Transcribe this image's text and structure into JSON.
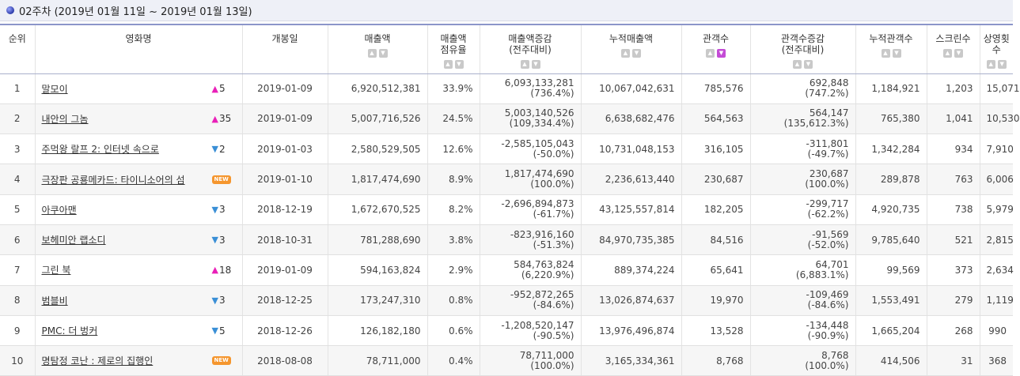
{
  "header": {
    "title": "02주차 (2019년 01월 11일 ~ 2019년 01월 13일)"
  },
  "columns": [
    {
      "label": "순위",
      "sortable": false,
      "active": false
    },
    {
      "label": "영화명",
      "sortable": false,
      "active": false
    },
    {
      "label": "개봉일",
      "sortable": false,
      "active": false
    },
    {
      "label": "매출액",
      "sortable": true,
      "active": false
    },
    {
      "label": "매출액\n점유율",
      "sortable": true,
      "active": false
    },
    {
      "label": "매출액증감\n(전주대비)",
      "sortable": true,
      "active": false
    },
    {
      "label": "누적매출액",
      "sortable": true,
      "active": false
    },
    {
      "label": "관객수",
      "sortable": true,
      "active": true
    },
    {
      "label": "관객수증감\n(전주대비)",
      "sortable": true,
      "active": false
    },
    {
      "label": "누적관객수",
      "sortable": true,
      "active": false
    },
    {
      "label": "스크린수",
      "sortable": true,
      "active": false
    },
    {
      "label": "상영횟수",
      "sortable": true,
      "active": false
    }
  ],
  "rows": [
    {
      "rank": "1",
      "title": "말모이",
      "change": {
        "dir": "up",
        "value": "5"
      },
      "release": "2019-01-09",
      "sales": "6,920,512,381",
      "share": "33.9%",
      "sales_delta": "6,093,133,281",
      "sales_delta_pct": "(736.4%)",
      "cum_sales": "10,067,042,631",
      "audience": "785,576",
      "aud_delta": "692,848",
      "aud_delta_pct": "(747.2%)",
      "cum_audience": "1,184,921",
      "screens": "1,203",
      "shows": "15,071"
    },
    {
      "rank": "2",
      "title": "내안의 그놈",
      "change": {
        "dir": "up",
        "value": "35"
      },
      "release": "2019-01-09",
      "sales": "5,007,716,526",
      "share": "24.5%",
      "sales_delta": "5,003,140,526",
      "sales_delta_pct": "(109,334.4%)",
      "cum_sales": "6,638,682,476",
      "audience": "564,563",
      "aud_delta": "564,147",
      "aud_delta_pct": "(135,612.3%)",
      "cum_audience": "765,380",
      "screens": "1,041",
      "shows": "10,530"
    },
    {
      "rank": "3",
      "title": "주먹왕 랄프 2: 인터넷 속으로",
      "change": {
        "dir": "down",
        "value": "2"
      },
      "release": "2019-01-03",
      "sales": "2,580,529,505",
      "share": "12.6%",
      "sales_delta": "-2,585,105,043",
      "sales_delta_pct": "(-50.0%)",
      "cum_sales": "10,731,048,153",
      "audience": "316,105",
      "aud_delta": "-311,801",
      "aud_delta_pct": "(-49.7%)",
      "cum_audience": "1,342,284",
      "screens": "934",
      "shows": "7,910"
    },
    {
      "rank": "4",
      "title": "극장판 공룡메카드: 타이니소어의 섬",
      "change": {
        "dir": "new",
        "value": "NEW"
      },
      "release": "2019-01-10",
      "sales": "1,817,474,690",
      "share": "8.9%",
      "sales_delta": "1,817,474,690",
      "sales_delta_pct": "(100.0%)",
      "cum_sales": "2,236,613,440",
      "audience": "230,687",
      "aud_delta": "230,687",
      "aud_delta_pct": "(100.0%)",
      "cum_audience": "289,878",
      "screens": "763",
      "shows": "6,006"
    },
    {
      "rank": "5",
      "title": "아쿠아맨",
      "change": {
        "dir": "down",
        "value": "3"
      },
      "release": "2018-12-19",
      "sales": "1,672,670,525",
      "share": "8.2%",
      "sales_delta": "-2,696,894,873",
      "sales_delta_pct": "(-61.7%)",
      "cum_sales": "43,125,557,814",
      "audience": "182,205",
      "aud_delta": "-299,717",
      "aud_delta_pct": "(-62.2%)",
      "cum_audience": "4,920,735",
      "screens": "738",
      "shows": "5,979"
    },
    {
      "rank": "6",
      "title": "보헤미안 랩소디",
      "change": {
        "dir": "down",
        "value": "3"
      },
      "release": "2018-10-31",
      "sales": "781,288,690",
      "share": "3.8%",
      "sales_delta": "-823,916,160",
      "sales_delta_pct": "(-51.3%)",
      "cum_sales": "84,970,735,385",
      "audience": "84,516",
      "aud_delta": "-91,569",
      "aud_delta_pct": "(-52.0%)",
      "cum_audience": "9,785,640",
      "screens": "521",
      "shows": "2,815"
    },
    {
      "rank": "7",
      "title": "그린 북",
      "change": {
        "dir": "up",
        "value": "18"
      },
      "release": "2019-01-09",
      "sales": "594,163,824",
      "share": "2.9%",
      "sales_delta": "584,763,824",
      "sales_delta_pct": "(6,220.9%)",
      "cum_sales": "889,374,224",
      "audience": "65,641",
      "aud_delta": "64,701",
      "aud_delta_pct": "(6,883.1%)",
      "cum_audience": "99,569",
      "screens": "373",
      "shows": "2,634"
    },
    {
      "rank": "8",
      "title": "범블비",
      "change": {
        "dir": "down",
        "value": "3"
      },
      "release": "2018-12-25",
      "sales": "173,247,310",
      "share": "0.8%",
      "sales_delta": "-952,872,265",
      "sales_delta_pct": "(-84.6%)",
      "cum_sales": "13,026,874,637",
      "audience": "19,970",
      "aud_delta": "-109,469",
      "aud_delta_pct": "(-84.6%)",
      "cum_audience": "1,553,491",
      "screens": "279",
      "shows": "1,119"
    },
    {
      "rank": "9",
      "title": "PMC: 더 벙커",
      "change": {
        "dir": "down",
        "value": "5"
      },
      "release": "2018-12-26",
      "sales": "126,182,180",
      "share": "0.6%",
      "sales_delta": "-1,208,520,147",
      "sales_delta_pct": "(-90.5%)",
      "cum_sales": "13,976,496,874",
      "audience": "13,528",
      "aud_delta": "-134,448",
      "aud_delta_pct": "(-90.9%)",
      "cum_audience": "1,665,204",
      "screens": "268",
      "shows": "990"
    },
    {
      "rank": "10",
      "title": "명탐정 코난 : 제로의 집행인",
      "change": {
        "dir": "new",
        "value": "NEW"
      },
      "release": "2018-08-08",
      "sales": "78,711,000",
      "share": "0.4%",
      "sales_delta": "78,711,000",
      "sales_delta_pct": "(100.0%)",
      "cum_sales": "3,165,334,361",
      "audience": "8,768",
      "aud_delta": "8,768",
      "aud_delta_pct": "(100.0%)",
      "cum_audience": "414,506",
      "screens": "31",
      "shows": "368"
    }
  ]
}
